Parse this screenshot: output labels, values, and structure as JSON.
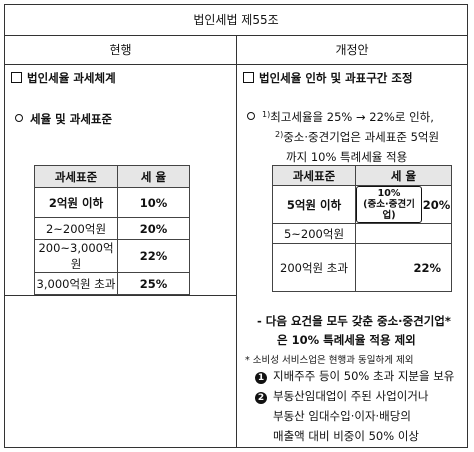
{
  "doc_title": "법인세법 제55조",
  "columns": {
    "current": "현행",
    "revised": "개정안"
  },
  "current": {
    "section": "법인세율 과세체계",
    "item": "세율 및 과세표준",
    "table": {
      "header": [
        "과세표준",
        "세 율"
      ],
      "rows": [
        [
          "2억원 이하",
          "10%"
        ],
        [
          "2~200억원",
          "20%"
        ],
        [
          "200~3,000억원",
          "22%"
        ],
        [
          "3,000억원 초과",
          "25%"
        ]
      ]
    }
  },
  "revised": {
    "section": "법인세율 인하 및 과표구간 조정",
    "note1_mark": "1)",
    "note1": "최고세율을 25% → 22%로 인하,",
    "note2_mark": "2)",
    "note2_a": "중소·중견기업은 과세표준 5억원",
    "note2_b": "까지 10% 특례세율 적용",
    "table": {
      "header": [
        "과세표준",
        "세 율"
      ],
      "row1_label": "5억원 이하",
      "row1_sub_rate": "10%",
      "row1_sub_label": "(중소·중견기업)",
      "row1_rate": "20%",
      "row2_label": "5~200억원",
      "row3_label": "200억원 초과",
      "row3_rate": "22%"
    },
    "cond_line1": "- 다음 요건을 모두 갖춘 중소·중견기업*",
    "cond_line2": "은 10% 특례세율 적용 제외",
    "footnote": "* 소비성 서비스업은 현행과 동일하게 제외",
    "req1_num": "1",
    "req1": "지배주주 등이 50% 초과 지분을 보유",
    "req2_num": "2",
    "req2_a": "부동산임대업이 주된 사업이거나",
    "req2_b": "부동산 임대수입·이자·배당의",
    "req2_c": "매출액 대비 비중이 50% 이상"
  }
}
